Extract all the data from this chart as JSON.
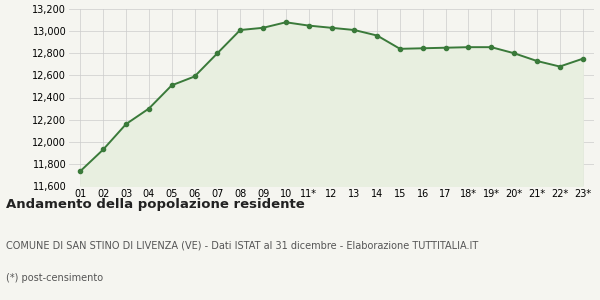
{
  "x_labels": [
    "01",
    "02",
    "03",
    "04",
    "05",
    "06",
    "07",
    "08",
    "09",
    "10",
    "11*",
    "12",
    "13",
    "14",
    "15",
    "16",
    "17",
    "18*",
    "19*",
    "20*",
    "21*",
    "22*",
    "23*"
  ],
  "values": [
    11735,
    11930,
    12160,
    12300,
    12510,
    12590,
    12800,
    13010,
    13030,
    13080,
    13050,
    13030,
    13010,
    12960,
    12840,
    12845,
    12850,
    12855,
    12855,
    12800,
    12730,
    12680,
    12750
  ],
  "line_color": "#3a7a3a",
  "fill_color": "#e8efe0",
  "marker": "o",
  "marker_size": 3.0,
  "line_width": 1.4,
  "ylim": [
    11600,
    13200
  ],
  "yticks": [
    11600,
    11800,
    12000,
    12200,
    12400,
    12600,
    12800,
    13000,
    13200
  ],
  "background_color": "#f5f5f0",
  "grid_color": "#cccccc",
  "title": "Andamento della popolazione residente",
  "subtitle": "COMUNE DI SAN STINO DI LIVENZA (VE) - Dati ISTAT al 31 dicembre - Elaborazione TUTTITALIA.IT",
  "footnote": "(*) post-censimento",
  "title_fontsize": 9.5,
  "subtitle_fontsize": 7.0,
  "footnote_fontsize": 7.0,
  "tick_fontsize": 7.0,
  "title_color": "#222222",
  "subtitle_color": "#555555"
}
